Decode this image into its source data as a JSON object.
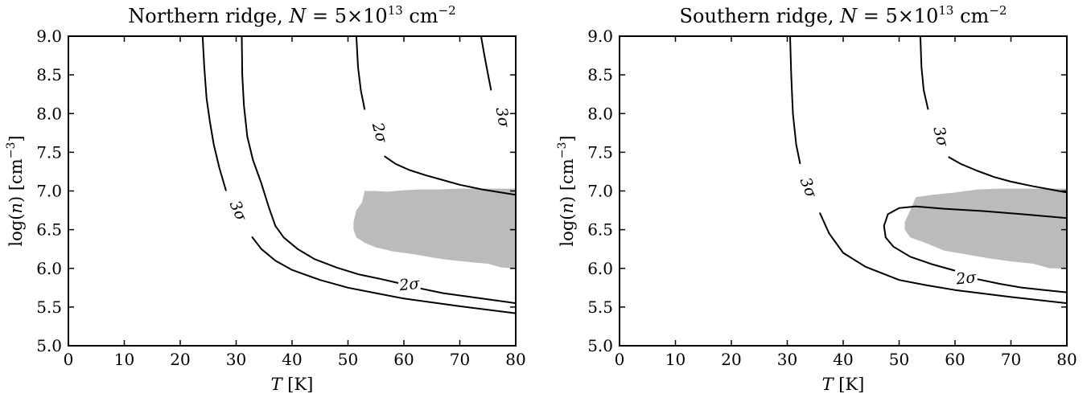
{
  "chart_data": [
    {
      "type": "contour",
      "title": "Northern ridge, N = 5×10^13 cm^-2",
      "title_parts": {
        "name": "Northern ridge, ",
        "var": "N",
        "eq": " = 5×10",
        "exp": "13",
        "unit": " cm",
        "unit_exp": "−2"
      },
      "xlabel": {
        "var": "T",
        "unit": " [K]"
      },
      "ylabel": {
        "pre": "log(",
        "var": "n",
        "post": ") [cm",
        "exp": "−3",
        "end": "]"
      },
      "xlim": [
        0,
        80
      ],
      "ylim": [
        5.0,
        9.0
      ],
      "xticks": [
        0,
        10,
        20,
        30,
        40,
        50,
        60,
        70,
        80
      ],
      "xtick_labels": [
        "0",
        "10",
        "20",
        "30",
        "40",
        "50",
        "60",
        "70",
        "80"
      ],
      "yticks": [
        5.0,
        5.5,
        6.0,
        6.5,
        7.0,
        7.5,
        8.0,
        8.5,
        9.0
      ],
      "ytick_labels": [
        "5.0",
        "5.5",
        "6.0",
        "6.5",
        "7.0",
        "7.5",
        "8.0",
        "8.5",
        "9.0"
      ],
      "grid": false,
      "shaded_region": [
        [
          53,
          7.0
        ],
        [
          55,
          7.0
        ],
        [
          57,
          6.99
        ],
        [
          60,
          7.01
        ],
        [
          63,
          7.02
        ],
        [
          66,
          7.02
        ],
        [
          70,
          7.03
        ],
        [
          75,
          7.03
        ],
        [
          80,
          7.03
        ],
        [
          80,
          6.0
        ],
        [
          77.5,
          6.01
        ],
        [
          75,
          6.06
        ],
        [
          72,
          6.08
        ],
        [
          68,
          6.11
        ],
        [
          65,
          6.14
        ],
        [
          62,
          6.18
        ],
        [
          58,
          6.22
        ],
        [
          55,
          6.27
        ],
        [
          53,
          6.33
        ],
        [
          51.5,
          6.4
        ],
        [
          51,
          6.5
        ],
        [
          51,
          6.6
        ],
        [
          51.5,
          6.75
        ],
        [
          52.5,
          6.85
        ],
        [
          53,
          7.0
        ]
      ],
      "contours": [
        {
          "level": "3σ",
          "segments": [
            [
              [
                24,
                9.0
              ],
              [
                24.3,
                8.6
              ],
              [
                24.7,
                8.2
              ],
              [
                25.3,
                7.9
              ],
              [
                26.0,
                7.6
              ],
              [
                27.0,
                7.3
              ],
              [
                28.2,
                7.0
              ]
            ],
            [
              [
                32.8,
                6.41
              ],
              [
                34.5,
                6.25
              ],
              [
                37,
                6.1
              ],
              [
                40,
                5.98
              ],
              [
                45,
                5.85
              ],
              [
                50,
                5.75
              ],
              [
                55,
                5.68
              ],
              [
                60,
                5.61
              ],
              [
                70,
                5.51
              ],
              [
                80,
                5.42
              ]
            ]
          ],
          "labels": [
            {
              "text": "3σ",
              "x": 30.2,
              "y": 6.74,
              "angle": 66
            }
          ]
        },
        {
          "level": "2σ",
          "segments": [
            [
              [
                31,
                9.0
              ],
              [
                31.1,
                8.5
              ],
              [
                31.4,
                8.1
              ],
              [
                32,
                7.7
              ],
              [
                33,
                7.4
              ],
              [
                34.5,
                7.1
              ],
              [
                35.8,
                6.8
              ],
              [
                37,
                6.55
              ],
              [
                38.5,
                6.4
              ],
              [
                41,
                6.25
              ],
              [
                44,
                6.12
              ],
              [
                48,
                6.01
              ],
              [
                52,
                5.92
              ],
              [
                56,
                5.86
              ],
              [
                59,
                5.81
              ]
            ],
            [
              [
                63,
                5.74
              ],
              [
                67,
                5.68
              ],
              [
                72,
                5.63
              ],
              [
                80,
                5.55
              ]
            ]
          ],
          "labels": [
            {
              "text": "2σ",
              "x": 61,
              "y": 5.78,
              "angle": -6
            }
          ]
        },
        {
          "level": "2σ",
          "segments": [
            [
              [
                51.5,
                9.0
              ],
              [
                51.8,
                8.6
              ],
              [
                52.3,
                8.3
              ],
              [
                53.0,
                8.05
              ]
            ],
            [
              [
                56.5,
                7.45
              ],
              [
                58.5,
                7.35
              ],
              [
                61,
                7.27
              ],
              [
                64,
                7.2
              ],
              [
                67,
                7.14
              ],
              [
                70,
                7.08
              ],
              [
                74,
                7.02
              ],
              [
                80,
                6.95
              ]
            ]
          ],
          "labels": [
            {
              "text": "2σ",
              "x": 55.5,
              "y": 7.75,
              "angle": 75
            }
          ]
        },
        {
          "level": "3σ",
          "segments": [
            [
              [
                73.8,
                9.0
              ],
              [
                74.4,
                8.75
              ],
              [
                75.0,
                8.52
              ],
              [
                75.6,
                8.3
              ]
            ]
          ],
          "labels": [
            {
              "text": "3σ",
              "x": 77.5,
              "y": 7.95,
              "angle": 80
            }
          ]
        }
      ]
    },
    {
      "type": "contour",
      "title": "Southern ridge, N = 5×10^13 cm^-2",
      "title_parts": {
        "name": "Southern ridge, ",
        "var": "N",
        "eq": " = 5×10",
        "exp": "13",
        "unit": " cm",
        "unit_exp": "−2"
      },
      "xlabel": {
        "var": "T",
        "unit": " [K]"
      },
      "ylabel": {
        "pre": "log(",
        "var": "n",
        "post": ") [cm",
        "exp": "−3",
        "end": "]"
      },
      "xlim": [
        0,
        80
      ],
      "ylim": [
        5.0,
        9.0
      ],
      "xticks": [
        0,
        10,
        20,
        30,
        40,
        50,
        60,
        70,
        80
      ],
      "xtick_labels": [
        "0",
        "10",
        "20",
        "30",
        "40",
        "50",
        "60",
        "70",
        "80"
      ],
      "yticks": [
        5.0,
        5.5,
        6.0,
        6.5,
        7.0,
        7.5,
        8.0,
        8.5,
        9.0
      ],
      "ytick_labels": [
        "5.0",
        "5.5",
        "6.0",
        "6.5",
        "7.0",
        "7.5",
        "8.0",
        "8.5",
        "9.0"
      ],
      "grid": false,
      "shaded_region": [
        [
          53,
          6.92
        ],
        [
          56,
          6.95
        ],
        [
          60,
          6.98
        ],
        [
          64,
          7.02
        ],
        [
          68,
          7.03
        ],
        [
          80,
          7.03
        ],
        [
          80,
          6.0
        ],
        [
          77,
          6.0
        ],
        [
          74,
          6.06
        ],
        [
          70,
          6.09
        ],
        [
          66,
          6.13
        ],
        [
          62,
          6.18
        ],
        [
          58,
          6.23
        ],
        [
          55,
          6.32
        ],
        [
          52,
          6.4
        ],
        [
          51,
          6.5
        ],
        [
          51,
          6.6
        ],
        [
          52,
          6.75
        ],
        [
          53,
          6.92
        ]
      ],
      "contours": [
        {
          "level": "3σ",
          "segments": [
            [
              [
                30.5,
                9.0
              ],
              [
                30.7,
                8.5
              ],
              [
                31.0,
                8.0
              ],
              [
                31.6,
                7.6
              ],
              [
                32.3,
                7.35
              ]
            ],
            [
              [
                35.8,
                6.72
              ],
              [
                37.5,
                6.45
              ],
              [
                40,
                6.2
              ],
              [
                44,
                6.02
              ],
              [
                50,
                5.85
              ],
              [
                55,
                5.78
              ],
              [
                60,
                5.72
              ],
              [
                70,
                5.63
              ],
              [
                80,
                5.55
              ]
            ]
          ],
          "labels": [
            {
              "text": "3σ",
              "x": 33.6,
              "y": 7.04,
              "angle": 68
            }
          ]
        },
        {
          "level": "2σ",
          "segments": [
            [
              [
                80,
                6.65
              ],
              [
                72,
                6.7
              ],
              [
                65,
                6.74
              ],
              [
                58,
                6.77
              ],
              [
                53,
                6.8
              ],
              [
                50,
                6.78
              ],
              [
                48,
                6.7
              ],
              [
                47.3,
                6.55
              ],
              [
                47.6,
                6.4
              ],
              [
                49,
                6.28
              ],
              [
                52,
                6.15
              ],
              [
                56,
                6.05
              ],
              [
                60,
                5.97
              ]
            ],
            [
              [
                64,
                5.86
              ],
              [
                68,
                5.8
              ],
              [
                72,
                5.75
              ],
              [
                76,
                5.72
              ],
              [
                80,
                5.69
              ]
            ]
          ],
          "labels": [
            {
              "text": "2σ",
              "x": 62,
              "y": 5.86,
              "angle": -6
            }
          ]
        },
        {
          "level": "3σ",
          "segments": [
            [
              [
                53.8,
                9.0
              ],
              [
                54.0,
                8.6
              ],
              [
                54.4,
                8.3
              ],
              [
                55.2,
                8.05
              ]
            ],
            [
              [
                58.8,
                7.44
              ],
              [
                61,
                7.35
              ],
              [
                64,
                7.26
              ],
              [
                67,
                7.18
              ],
              [
                70,
                7.12
              ],
              [
                74,
                7.06
              ],
              [
                80,
                6.98
              ]
            ]
          ],
          "labels": [
            {
              "text": "3σ",
              "x": 57.3,
              "y": 7.7,
              "angle": 75
            }
          ]
        }
      ]
    }
  ]
}
